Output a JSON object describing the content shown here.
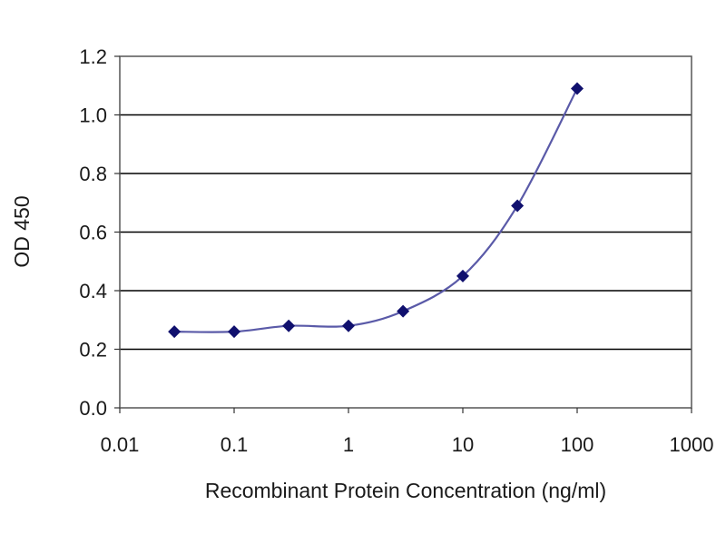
{
  "chart_data": {
    "type": "line",
    "title": "",
    "xlabel": "Recombinant Protein Concentration (ng/ml)",
    "ylabel": "OD 450",
    "x_scale": "log",
    "xlim": [
      0.01,
      1000
    ],
    "ylim": [
      0.0,
      1.2
    ],
    "x_ticks": [
      0.01,
      0.1,
      1,
      10,
      100,
      1000
    ],
    "x_tick_labels": [
      "0.01",
      "0.1",
      "1",
      "10",
      "100",
      "1000"
    ],
    "y_ticks": [
      0.0,
      0.2,
      0.4,
      0.6,
      0.8,
      1.0,
      1.2
    ],
    "y_tick_labels": [
      "0.0",
      "0.2",
      "0.4",
      "0.6",
      "0.8",
      "1.0",
      "1.2"
    ],
    "grid": "horizontal",
    "legend": "none",
    "series": [
      {
        "x": [
          0.03,
          0.1,
          0.3,
          1,
          3,
          10,
          30,
          100
        ],
        "y": [
          0.26,
          0.26,
          0.28,
          0.28,
          0.33,
          0.45,
          0.69,
          1.09
        ],
        "marker": "diamond",
        "smooth": true
      }
    ],
    "colors": {
      "line": "#5a5aa8",
      "marker": "#10106e",
      "grid": "#000000",
      "plot_background": "#ffffff"
    }
  }
}
